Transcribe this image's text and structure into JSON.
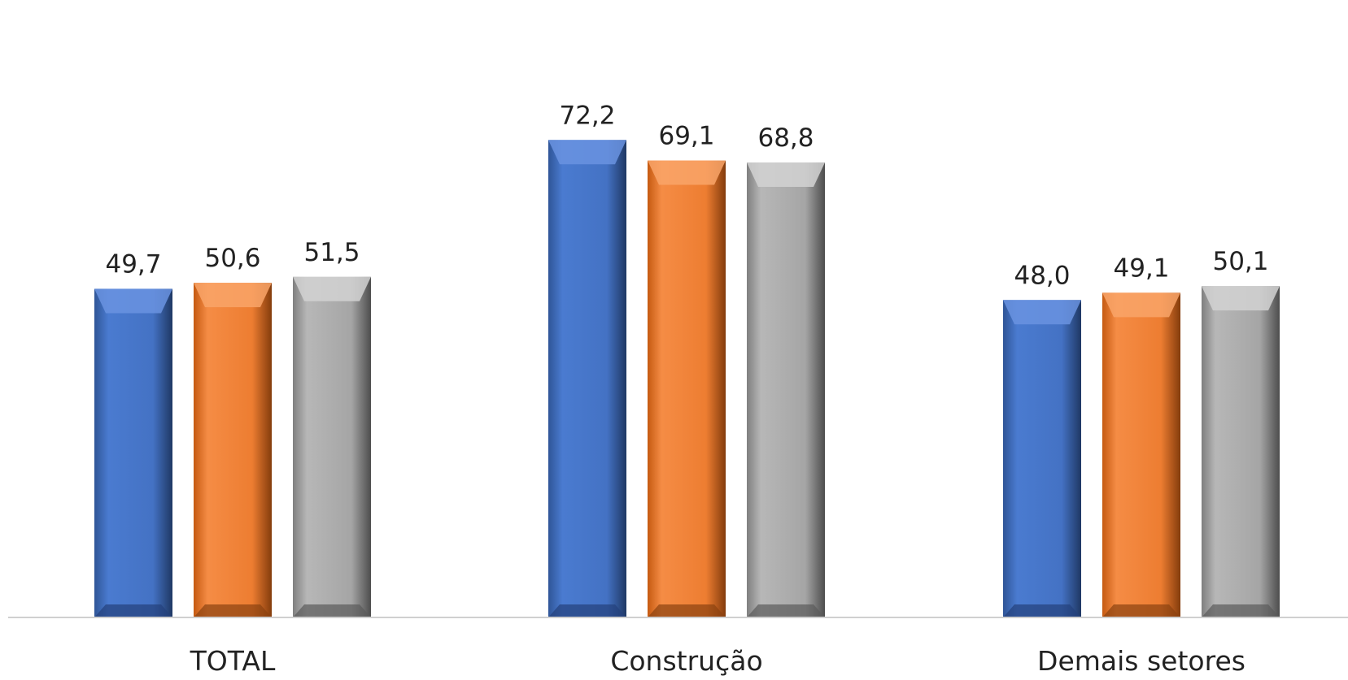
{
  "chart_data": {
    "type": "bar",
    "title": "",
    "xlabel": "",
    "ylabel": "",
    "ylim": [
      0,
      80
    ],
    "grid": false,
    "legend": "none",
    "categories": [
      "TOTAL",
      "Construção",
      "Demais setores"
    ],
    "series": [
      {
        "values": [
          49.7,
          72.2,
          48.0
        ],
        "color": "#4472c4",
        "value_labels": [
          "49,7",
          "72,2",
          "48,0"
        ]
      },
      {
        "values": [
          50.6,
          69.1,
          49.1
        ],
        "color": "#ed7d31",
        "value_labels": [
          "50,6",
          "69,1",
          "49,1"
        ]
      },
      {
        "values": [
          51.5,
          68.8,
          50.1
        ],
        "color": "#a5a5a5",
        "value_labels": [
          "51,5",
          "68,8",
          "50,1"
        ]
      }
    ]
  }
}
